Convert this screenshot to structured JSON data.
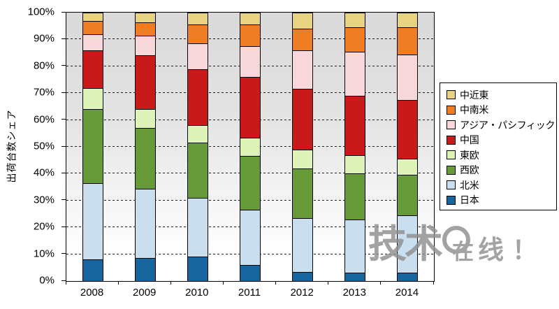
{
  "y_axis": {
    "title": "出荷台数シェア",
    "ticks": [
      "100%",
      "90%",
      "80%",
      "70%",
      "60%",
      "50%",
      "40%",
      "30%",
      "20%",
      "10%",
      "0%"
    ]
  },
  "x_axis": {
    "labels": [
      "2008",
      "2009",
      "2010",
      "2011",
      "2012",
      "2013",
      "2014"
    ]
  },
  "legend": {
    "items": [
      {
        "id": "middle-east",
        "label": "中近東",
        "color": "#e8d382"
      },
      {
        "id": "latin-america",
        "label": "中南米",
        "color": "#ee7d23"
      },
      {
        "id": "asia-pacific",
        "label": "アジア・パシフィック",
        "color": "#f8d7da"
      },
      {
        "id": "china",
        "label": "中国",
        "color": "#c81a1b"
      },
      {
        "id": "east-europe",
        "label": "東欧",
        "color": "#ddf3b8"
      },
      {
        "id": "west-europe",
        "label": "西欧",
        "color": "#679b3a"
      },
      {
        "id": "north-america",
        "label": "北米",
        "color": "#c9dff0"
      },
      {
        "id": "japan",
        "label": "日本",
        "color": "#16659f"
      }
    ]
  },
  "watermark": {
    "prefix": "技术",
    "icon": "magnifier-ring-icon",
    "suffix_1": "在",
    "suffix_2": "线",
    "exclamation": "！",
    "color": "#8f8f8f"
  },
  "chart_data": {
    "type": "bar",
    "stacked": true,
    "units": "percent-share",
    "title": "",
    "xlabel": "",
    "ylabel": "出荷台数シェア",
    "ylim": [
      0,
      100
    ],
    "ytick_step": 10,
    "grid": "dashed-horizontal",
    "legend_position": "right",
    "categories": [
      "2008",
      "2009",
      "2010",
      "2011",
      "2012",
      "2013",
      "2014"
    ],
    "series": [
      {
        "id": "japan",
        "name": "日本",
        "color": "#16659f",
        "values": [
          8,
          8.5,
          9,
          6,
          3.5,
          3,
          3
        ]
      },
      {
        "id": "north-america",
        "name": "北米",
        "color": "#c9dff0",
        "values": [
          28.5,
          26,
          22,
          20.5,
          20,
          20,
          21.5
        ]
      },
      {
        "id": "west-europe",
        "name": "西欧",
        "color": "#679b3a",
        "values": [
          27.5,
          22.5,
          20.5,
          20,
          18.5,
          17,
          15
        ]
      },
      {
        "id": "east-europe",
        "name": "東欧",
        "color": "#ddf3b8",
        "values": [
          8,
          7,
          6.5,
          7,
          7,
          7,
          6
        ]
      },
      {
        "id": "china",
        "name": "中国",
        "color": "#c81a1b",
        "values": [
          14,
          20,
          21,
          22.5,
          22.5,
          22,
          22
        ]
      },
      {
        "id": "asia-pacific",
        "name": "アジア・パシフィック",
        "color": "#f8d7da",
        "values": [
          6,
          7.5,
          9.5,
          11.5,
          14.5,
          16.5,
          17
        ]
      },
      {
        "id": "latin-america",
        "name": "中南米",
        "color": "#ee7d23",
        "values": [
          5,
          5,
          7,
          8,
          8,
          9,
          10
        ]
      },
      {
        "id": "middle-east",
        "name": "中近東",
        "color": "#e8d382",
        "values": [
          3,
          3.5,
          4.5,
          4.5,
          6,
          5.5,
          5.5
        ]
      }
    ],
    "gridlines_pct": [
      10,
      20,
      30,
      40,
      50,
      60,
      70,
      80,
      90
    ]
  }
}
